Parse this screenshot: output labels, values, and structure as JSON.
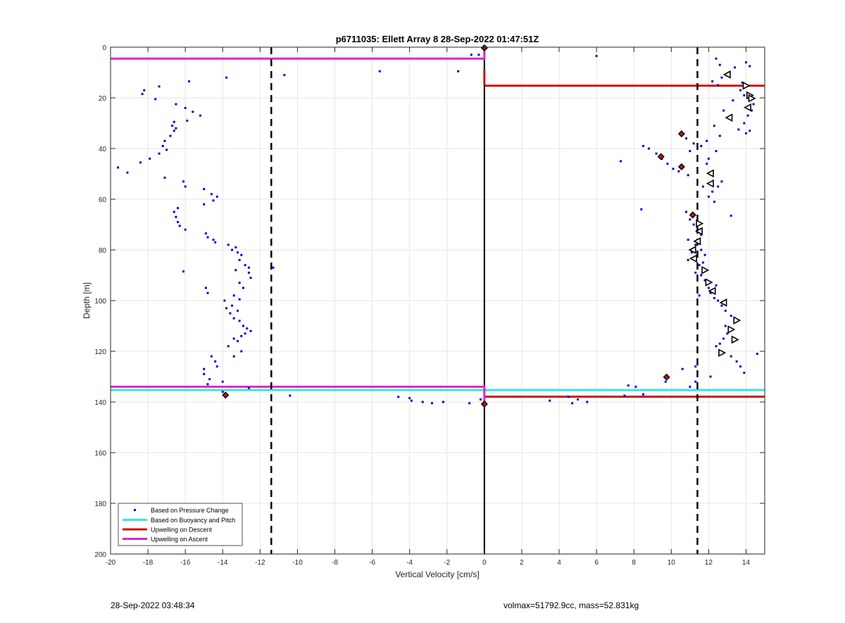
{
  "chart_data": {
    "type": "scatter",
    "title": "p6711035: Ellett Array 8 28-Sep-2022 01:47:51Z",
    "xlabel": "Vertical Velocity [cm/s]",
    "ylabel": "Depth [m]",
    "xlim": [
      -20,
      15
    ],
    "ylim": [
      0,
      200
    ],
    "y_reversed": true,
    "grid": true,
    "legend_position": "bottom-left",
    "x_ticks": [
      -20,
      -18,
      -16,
      -14,
      -12,
      -10,
      -8,
      -6,
      -4,
      -2,
      0,
      2,
      4,
      6,
      8,
      10,
      12,
      14
    ],
    "y_ticks": [
      0,
      20,
      40,
      60,
      80,
      100,
      120,
      140,
      160,
      180,
      200
    ],
    "colors": {
      "pressure": "#0000cc",
      "buoyancy": "#33e6e6",
      "descent": "#cc1111",
      "ascent": "#dd22dd",
      "marker_fill": "#cc1111"
    },
    "threshold_lines": [
      -11.4,
      11.4
    ],
    "zero_line": 0,
    "legend": [
      {
        "label": "Based on Pressure Change",
        "style": "dot",
        "color": "#0000cc"
      },
      {
        "label": "Based on Buoyancy and Pitch",
        "style": "line",
        "color": "#33e6e6"
      },
      {
        "label": "Upwelling on Descent",
        "style": "line",
        "color": "#cc1111"
      },
      {
        "label": "Upwelling on Ascent",
        "style": "line",
        "color": "#dd22dd"
      }
    ],
    "pressure_points": [
      [
        -19.6,
        47.5
      ],
      [
        -19.1,
        49.5
      ],
      [
        -18.4,
        45.5
      ],
      [
        -18.3,
        18.5
      ],
      [
        -18.2,
        17
      ],
      [
        -17.9,
        44
      ],
      [
        -17.4,
        15.5
      ],
      [
        -17.1,
        51.5
      ],
      [
        -17.6,
        20.5
      ],
      [
        -17.4,
        42
      ],
      [
        -17.2,
        39
      ],
      [
        -17.1,
        37
      ],
      [
        -17.0,
        40.5
      ],
      [
        -16.8,
        35
      ],
      [
        -16.7,
        31
      ],
      [
        -16.6,
        33
      ],
      [
        -16.5,
        22.5
      ],
      [
        -16.6,
        29.5
      ],
      [
        -16.5,
        32
      ],
      [
        -16.6,
        65
      ],
      [
        -16.5,
        67
      ],
      [
        -16.4,
        69
      ],
      [
        -16.4,
        63.5
      ],
      [
        -16.3,
        70.5
      ],
      [
        -16.1,
        53
      ],
      [
        -16.0,
        55
      ],
      [
        -16.0,
        72
      ],
      [
        -16.0,
        24
      ],
      [
        -16.1,
        88.5
      ],
      [
        -15.9,
        29
      ],
      [
        -15.8,
        13.5
      ],
      [
        -15.6,
        25.5
      ],
      [
        -15.2,
        27
      ],
      [
        -15.0,
        56
      ],
      [
        -15.0,
        62
      ],
      [
        -14.9,
        73.5
      ],
      [
        -14.8,
        75
      ],
      [
        -14.6,
        58
      ],
      [
        -14.4,
        77
      ],
      [
        -14.5,
        60.5
      ],
      [
        -14.5,
        76
      ],
      [
        -14.0,
        132
      ],
      [
        -14.3,
        59
      ],
      [
        -13.8,
        12
      ],
      [
        -13.7,
        78
      ],
      [
        -13.5,
        80
      ],
      [
        -13.3,
        79
      ],
      [
        -13.2,
        81
      ],
      [
        -13.0,
        82
      ],
      [
        -13.1,
        84
      ],
      [
        -12.8,
        86
      ],
      [
        -13.3,
        88
      ],
      [
        -12.6,
        89
      ],
      [
        -12.5,
        91
      ],
      [
        -13.1,
        93
      ],
      [
        -12.9,
        95
      ],
      [
        -14.9,
        95
      ],
      [
        -14.8,
        97
      ],
      [
        -13.4,
        98
      ],
      [
        -13.1,
        99.5
      ],
      [
        -13.9,
        100
      ],
      [
        -13.5,
        102
      ],
      [
        -13.2,
        104
      ],
      [
        -13.8,
        103
      ],
      [
        -13.6,
        105
      ],
      [
        -13.4,
        107
      ],
      [
        -13.1,
        108
      ],
      [
        -12.9,
        110
      ],
      [
        -12.7,
        111
      ],
      [
        -12.5,
        112
      ],
      [
        -12.8,
        113
      ],
      [
        -13.0,
        114
      ],
      [
        -13.4,
        115
      ],
      [
        -13.2,
        116
      ],
      [
        -13.7,
        118
      ],
      [
        -13.0,
        120
      ],
      [
        -13.4,
        122
      ],
      [
        -14.6,
        122
      ],
      [
        -14.4,
        124
      ],
      [
        -14.3,
        126
      ],
      [
        -15.0,
        127
      ],
      [
        -15.0,
        129
      ],
      [
        -14.7,
        131
      ],
      [
        -14.8,
        133
      ],
      [
        -14.0,
        136
      ],
      [
        -12.6,
        134.5
      ],
      [
        -12.6,
        87
      ],
      [
        -11.3,
        87
      ],
      [
        -10.7,
        11
      ],
      [
        -10.4,
        137.5
      ],
      [
        -5.6,
        9.5
      ],
      [
        -4.6,
        138
      ],
      [
        -4.0,
        138.5
      ],
      [
        -3.9,
        139.5
      ],
      [
        -3.3,
        140
      ],
      [
        -2.8,
        140.5
      ],
      [
        -2.2,
        140
      ],
      [
        -1.4,
        9.5
      ],
      [
        -0.7,
        3
      ],
      [
        -0.3,
        3
      ],
      [
        -0.8,
        140.5
      ],
      [
        -0.2,
        139
      ],
      [
        3.5,
        139.5
      ],
      [
        4.5,
        138
      ],
      [
        4.7,
        140.5
      ],
      [
        5.0,
        139
      ],
      [
        5.5,
        140
      ],
      [
        6.0,
        3.5
      ],
      [
        7.3,
        45
      ],
      [
        7.5,
        137.5
      ],
      [
        7.7,
        133.5
      ],
      [
        8.1,
        134
      ],
      [
        8.4,
        64
      ],
      [
        8.5,
        137
      ],
      [
        8.5,
        39
      ],
      [
        8.8,
        40
      ],
      [
        9.2,
        42
      ],
      [
        9.5,
        44
      ],
      [
        9.7,
        132
      ],
      [
        9.8,
        46
      ],
      [
        10.1,
        48
      ],
      [
        10.4,
        49
      ],
      [
        10.6,
        127
      ],
      [
        10.8,
        36
      ],
      [
        10.9,
        50.5
      ],
      [
        11.0,
        41
      ],
      [
        11.0,
        134
      ],
      [
        11.2,
        38
      ],
      [
        11.3,
        126
      ],
      [
        11.3,
        132
      ],
      [
        11.6,
        39
      ],
      [
        11.7,
        55
      ],
      [
        11.9,
        37
      ],
      [
        12.0,
        44
      ],
      [
        11.9,
        46
      ],
      [
        12.2,
        57
      ],
      [
        12.0,
        59
      ],
      [
        12.3,
        61
      ],
      [
        12.5,
        55
      ],
      [
        12.7,
        53
      ],
      [
        12.6,
        35
      ],
      [
        12.3,
        31
      ],
      [
        12.4,
        41
      ],
      [
        10.8,
        65
      ],
      [
        11.0,
        68
      ],
      [
        11.2,
        70
      ],
      [
        11.4,
        72
      ],
      [
        10.9,
        76
      ],
      [
        11.6,
        74
      ],
      [
        11.3,
        78
      ],
      [
        11.1,
        81
      ],
      [
        10.9,
        84
      ],
      [
        11.6,
        80
      ],
      [
        11.8,
        82
      ],
      [
        11.7,
        85
      ],
      [
        11.5,
        86
      ],
      [
        11.3,
        89
      ],
      [
        11.6,
        90
      ],
      [
        11.8,
        92
      ],
      [
        12.0,
        95
      ],
      [
        12.4,
        94
      ],
      [
        12.1,
        97
      ],
      [
        12.3,
        99
      ],
      [
        11.5,
        98
      ],
      [
        12.5,
        100
      ],
      [
        12.7,
        102
      ],
      [
        12.9,
        104
      ],
      [
        13.2,
        106
      ],
      [
        13.4,
        107
      ],
      [
        12.9,
        110
      ],
      [
        13.0,
        113
      ],
      [
        12.8,
        115
      ],
      [
        12.6,
        117
      ],
      [
        12.4,
        118
      ],
      [
        12.7,
        121
      ],
      [
        13.2,
        122
      ],
      [
        13.5,
        124
      ],
      [
        13.7,
        126
      ],
      [
        13.9,
        128.5
      ],
      [
        14.6,
        121
      ],
      [
        12.1,
        130
      ],
      [
        12.4,
        4.5
      ],
      [
        12.2,
        13.5
      ],
      [
        12.5,
        15
      ],
      [
        12.7,
        12
      ],
      [
        13.1,
        10
      ],
      [
        13.4,
        8
      ],
      [
        13.7,
        17
      ],
      [
        13.9,
        19
      ],
      [
        14.0,
        6
      ],
      [
        14.2,
        7.5
      ],
      [
        14.4,
        22.5
      ],
      [
        14.3,
        25
      ],
      [
        14.1,
        27
      ],
      [
        13.9,
        30
      ],
      [
        14.2,
        33
      ],
      [
        14.0,
        34
      ],
      [
        13.6,
        32.5
      ],
      [
        13.2,
        66.5
      ],
      [
        12.8,
        25
      ],
      [
        13.3,
        21
      ],
      [
        13.8,
        14
      ],
      [
        12.6,
        7
      ]
    ],
    "markers": [
      {
        "x": 0.0,
        "y": 0.3,
        "shape": "diamond-filled"
      },
      {
        "x": -13.85,
        "y": 137.3,
        "shape": "diamond-filled"
      },
      {
        "x": 0.0,
        "y": 140.8,
        "shape": "diamond-filled"
      },
      {
        "x": 10.55,
        "y": 34.2,
        "shape": "diamond-filled"
      },
      {
        "x": 9.45,
        "y": 43.2,
        "shape": "diamond-filled"
      },
      {
        "x": 10.55,
        "y": 47.2,
        "shape": "diamond-filled"
      },
      {
        "x": 11.15,
        "y": 66.2,
        "shape": "diamond-filled"
      },
      {
        "x": 9.75,
        "y": 130.2,
        "shape": "diamond-filled"
      },
      {
        "x": 13.0,
        "y": 10.8,
        "shape": "tri-left"
      },
      {
        "x": 14.0,
        "y": 15.2,
        "shape": "tri-right"
      },
      {
        "x": 14.2,
        "y": 19.0,
        "shape": "tri-right"
      },
      {
        "x": 14.3,
        "y": 20.2,
        "shape": "tri-right"
      },
      {
        "x": 14.1,
        "y": 23.8,
        "shape": "tri-left"
      },
      {
        "x": 13.1,
        "y": 27.8,
        "shape": "tri-left"
      },
      {
        "x": 12.1,
        "y": 49.8,
        "shape": "tri-left"
      },
      {
        "x": 12.1,
        "y": 53.8,
        "shape": "tri-left"
      },
      {
        "x": 11.5,
        "y": 69.6,
        "shape": "tri-right"
      },
      {
        "x": 11.5,
        "y": 72.6,
        "shape": "tri-left"
      },
      {
        "x": 11.4,
        "y": 76.6,
        "shape": "tri-left"
      },
      {
        "x": 11.15,
        "y": 80.0,
        "shape": "tri-left"
      },
      {
        "x": 11.2,
        "y": 83.4,
        "shape": "tri-left"
      },
      {
        "x": 11.8,
        "y": 88.0,
        "shape": "tri-right"
      },
      {
        "x": 12.0,
        "y": 92.8,
        "shape": "tri-right"
      },
      {
        "x": 12.2,
        "y": 96.2,
        "shape": "tri-left"
      },
      {
        "x": 12.8,
        "y": 100.8,
        "shape": "tri-left"
      },
      {
        "x": 13.5,
        "y": 107.8,
        "shape": "tri-right"
      },
      {
        "x": 13.2,
        "y": 111.4,
        "shape": "tri-right"
      },
      {
        "x": 13.4,
        "y": 115.4,
        "shape": "tri-right"
      },
      {
        "x": 12.7,
        "y": 120.6,
        "shape": "tri-right"
      }
    ],
    "hlines": [
      {
        "series": "ascent",
        "y": 4.5,
        "x_from": -20,
        "x_to": 0
      },
      {
        "series": "descent",
        "y": 15.2,
        "x_from": 0,
        "x_to": 15
      },
      {
        "series": "ascent",
        "y": 134.0,
        "x_from": -20,
        "x_to": 0
      },
      {
        "series": "buoyancy",
        "y": 135.3,
        "x_from": -20,
        "x_to": 15
      },
      {
        "series": "descent",
        "y": 137.9,
        "x_from": 0,
        "x_to": 15
      }
    ],
    "vsegments": [
      {
        "series": "ascent",
        "x": 0,
        "y_from": 0,
        "y_to": 5
      },
      {
        "series": "descent",
        "x": 0,
        "y_from": 9,
        "y_to": 15
      },
      {
        "series": "ascent",
        "x": 0,
        "y_from": 133.5,
        "y_to": 141
      }
    ]
  },
  "footer": {
    "left": "28-Sep-2022 03:48:34",
    "right": "volmax=51792.9cc, mass=52.831kg"
  }
}
